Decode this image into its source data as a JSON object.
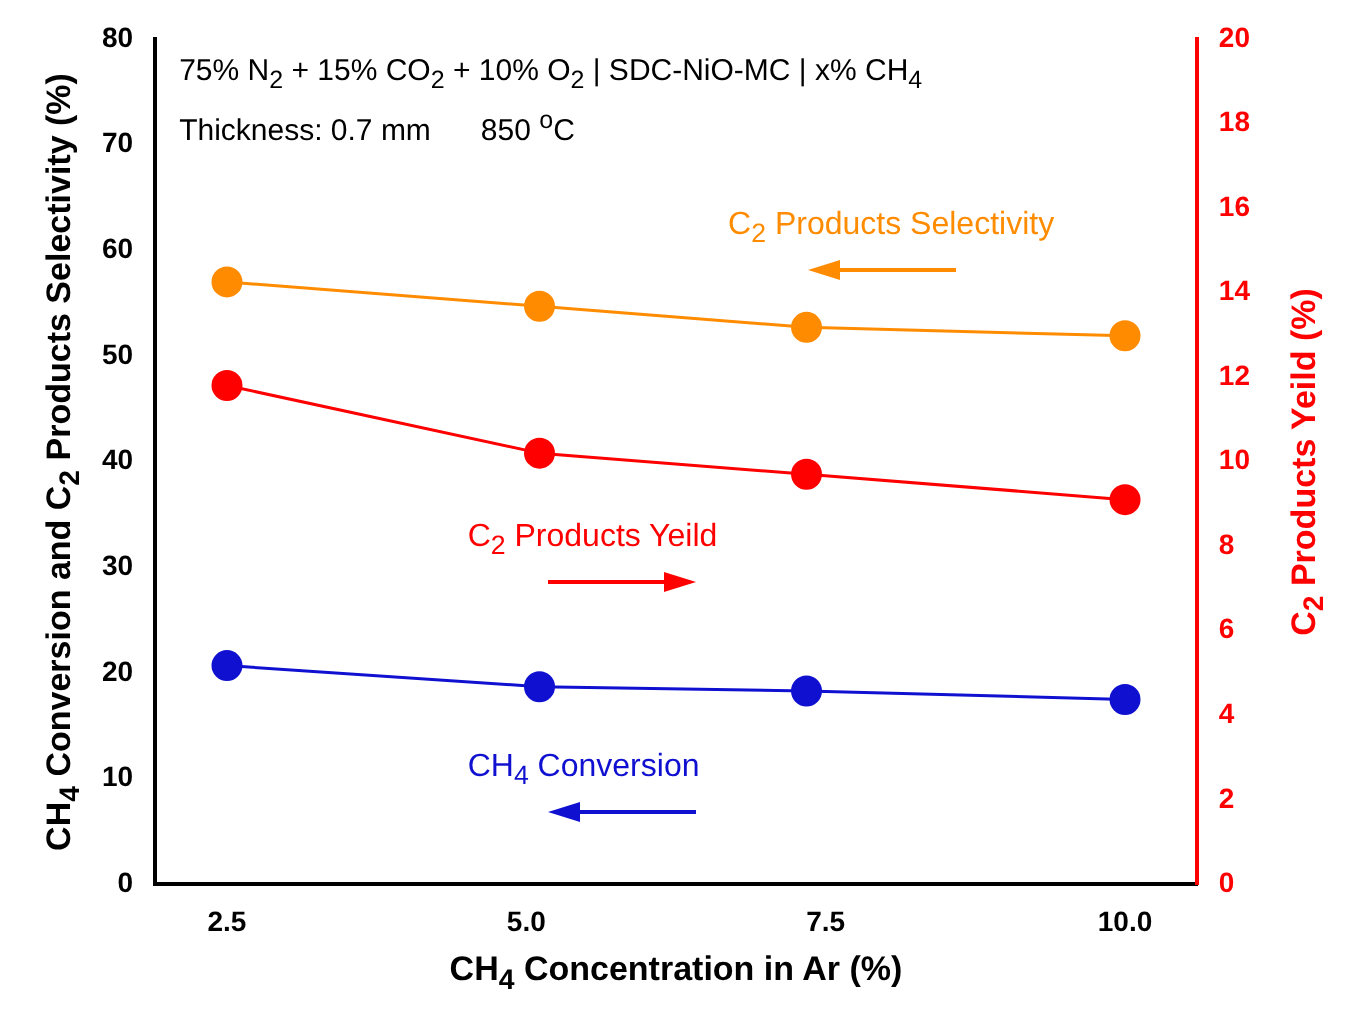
{
  "chart_data": {
    "type": "line",
    "xlabel": "CH$_{4}$ Concentration in Ar (%)",
    "ylabel": "CH$_{4}$ Conversion and C$_{2}$ Products Selectivity (%)",
    "y2label": "C$_{2}$ Products Yeild (%)",
    "annotations": [
      "75% N$_{2}$ + 15% CO$_{2}$ + 10% O$_{2}$ | SDC-NiO-MC | x% CH$_{4}$",
      "Thickness: 0.7 mm      850 $^{o}$C"
    ],
    "x": [
      2.5,
      5.11,
      7.34,
      10.0
    ],
    "series": [
      {
        "name": "CH$_{4}$ Conversion",
        "color": "#1010d0",
        "values": [
          20.7,
          18.7,
          18.3,
          17.5
        ]
      },
      {
        "name": "C$_{2}$ Products Selectivity",
        "color": "#ff8c00",
        "values": [
          57.0,
          54.7,
          52.7,
          51.9
        ]
      },
      {
        "name": "C$_{2}$ Products Yeild",
        "color": "#ff0000",
        "values": [
          11.8,
          10.2,
          9.7,
          9.1
        ],
        "axis": "y2"
      }
    ],
    "xlim": [
      1.9,
      10.6
    ],
    "xticks": [
      {
        "value": 2.5,
        "label": "2.5"
      },
      {
        "value": 5,
        "label": "5.0"
      },
      {
        "value": 7.5,
        "label": "7.5"
      },
      {
        "value": 10,
        "label": "10.0"
      }
    ],
    "ylim": [
      0,
      80
    ],
    "yticks": [
      0,
      10,
      20,
      30,
      40,
      50,
      60,
      70,
      80
    ],
    "y2lim": [
      0,
      20
    ],
    "y2ticks": [
      0,
      2,
      4,
      6,
      8,
      10,
      12,
      14,
      16,
      18,
      20
    ],
    "marker": "circle",
    "line_style": "solid",
    "grid": false,
    "legend": false
  }
}
